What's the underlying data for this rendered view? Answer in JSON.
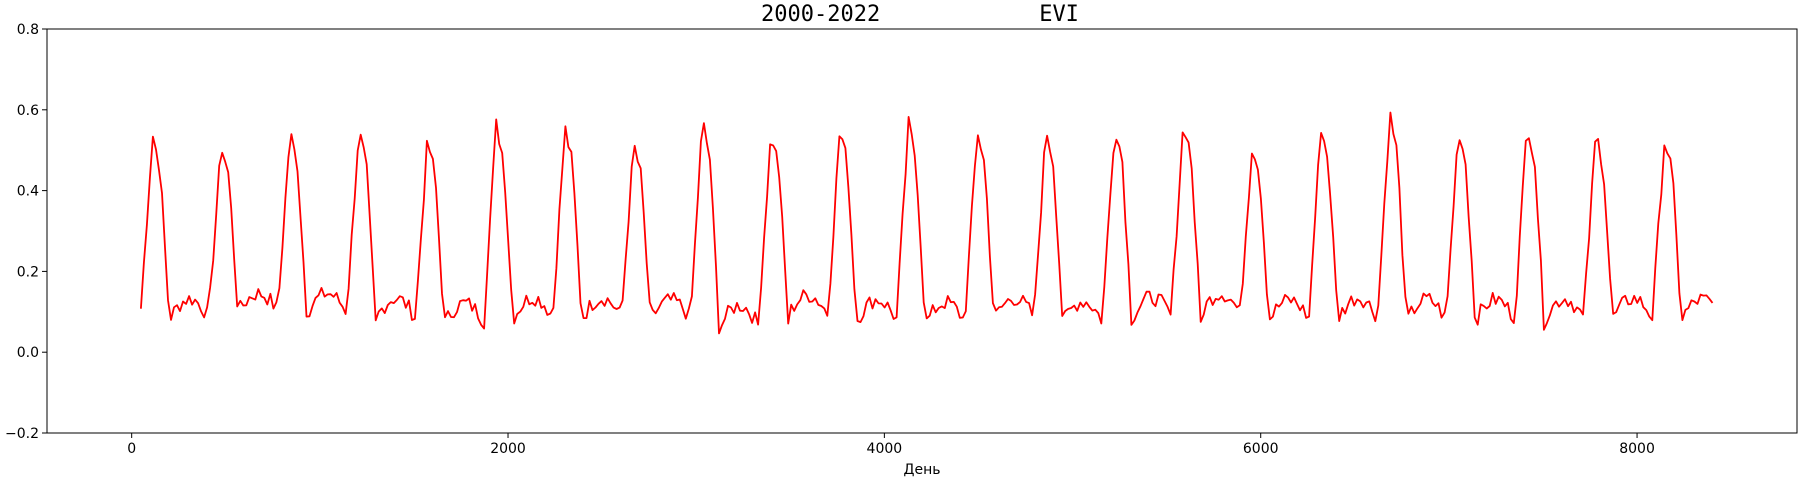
{
  "chart_data": {
    "type": "line",
    "title": "2000-2022            EVI",
    "xlabel": "День",
    "ylabel": "",
    "xlim": [
      -450,
      8850
    ],
    "ylim": [
      -0.2,
      0.8
    ],
    "x_ticks": [
      0,
      2000,
      4000,
      6000,
      8000
    ],
    "y_ticks": [
      -0.2,
      0.0,
      0.2,
      0.4,
      0.6,
      0.8
    ],
    "x_tick_labels": [
      "0",
      "2000",
      "4000",
      "6000",
      "8000"
    ],
    "y_tick_labels": [
      "−0.2",
      "0.0",
      "0.2",
      "0.4",
      "0.6",
      "0.8"
    ],
    "grid": false,
    "series": [
      {
        "color": "#ff0000",
        "season_start": 49,
        "period_days": 365.25,
        "step_days": 16,
        "peaks": [
          0.54,
          0.515,
          0.545,
          0.55,
          0.525,
          0.565,
          0.555,
          0.515,
          0.575,
          0.545,
          0.555,
          0.565,
          0.55,
          0.555,
          0.565,
          0.575,
          0.52,
          0.56,
          0.59,
          0.555,
          0.57,
          0.545,
          0.53
        ],
        "troughs": [
          0.06,
          0.08,
          0.075,
          0.06,
          0.05,
          0.06,
          0.06,
          0.06,
          0.035,
          0.07,
          0.055,
          0.045,
          0.06,
          0.05,
          0.06,
          0.07,
          0.06,
          0.06,
          0.05,
          0.055,
          0.055,
          0.06,
          0.06
        ]
      }
    ]
  }
}
